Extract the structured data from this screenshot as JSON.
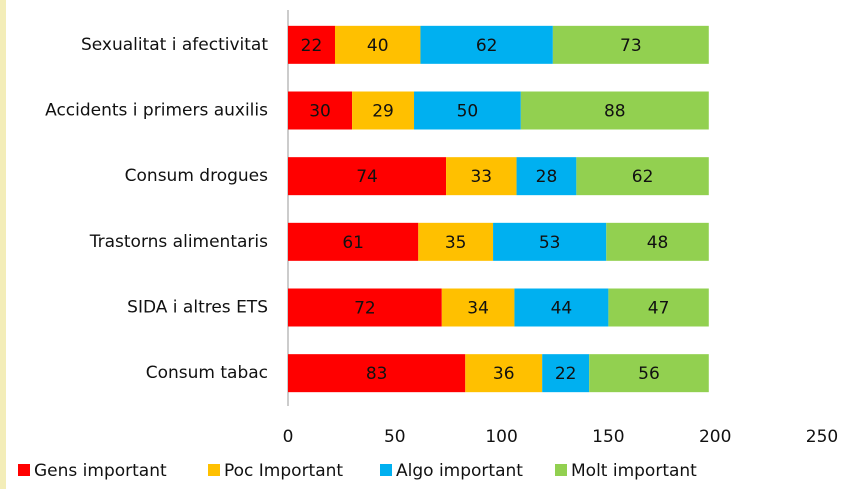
{
  "chart_data": {
    "type": "stacked_barh",
    "categories": [
      "Sexualitat i afectivitat",
      "Accidents i primers auxilis",
      "Consum drogues",
      "Trastorns alimentaris",
      "SIDA i altres ETS",
      "Consum tabac"
    ],
    "series": [
      {
        "name": "Gens important",
        "color": "#ff0000",
        "values": [
          22,
          30,
          74,
          61,
          72,
          83
        ]
      },
      {
        "name": "Poc Important",
        "color": "#ffc000",
        "values": [
          40,
          29,
          33,
          35,
          34,
          36
        ]
      },
      {
        "name": "Algo important",
        "color": "#00b0f0",
        "values": [
          62,
          50,
          28,
          53,
          44,
          22
        ]
      },
      {
        "name": "Molt important",
        "color": "#92d050",
        "values": [
          73,
          88,
          62,
          48,
          47,
          56
        ]
      }
    ],
    "xlim": [
      0,
      250
    ],
    "xticks": [
      0,
      50,
      100,
      150,
      200,
      250
    ],
    "legend": "bottom"
  }
}
